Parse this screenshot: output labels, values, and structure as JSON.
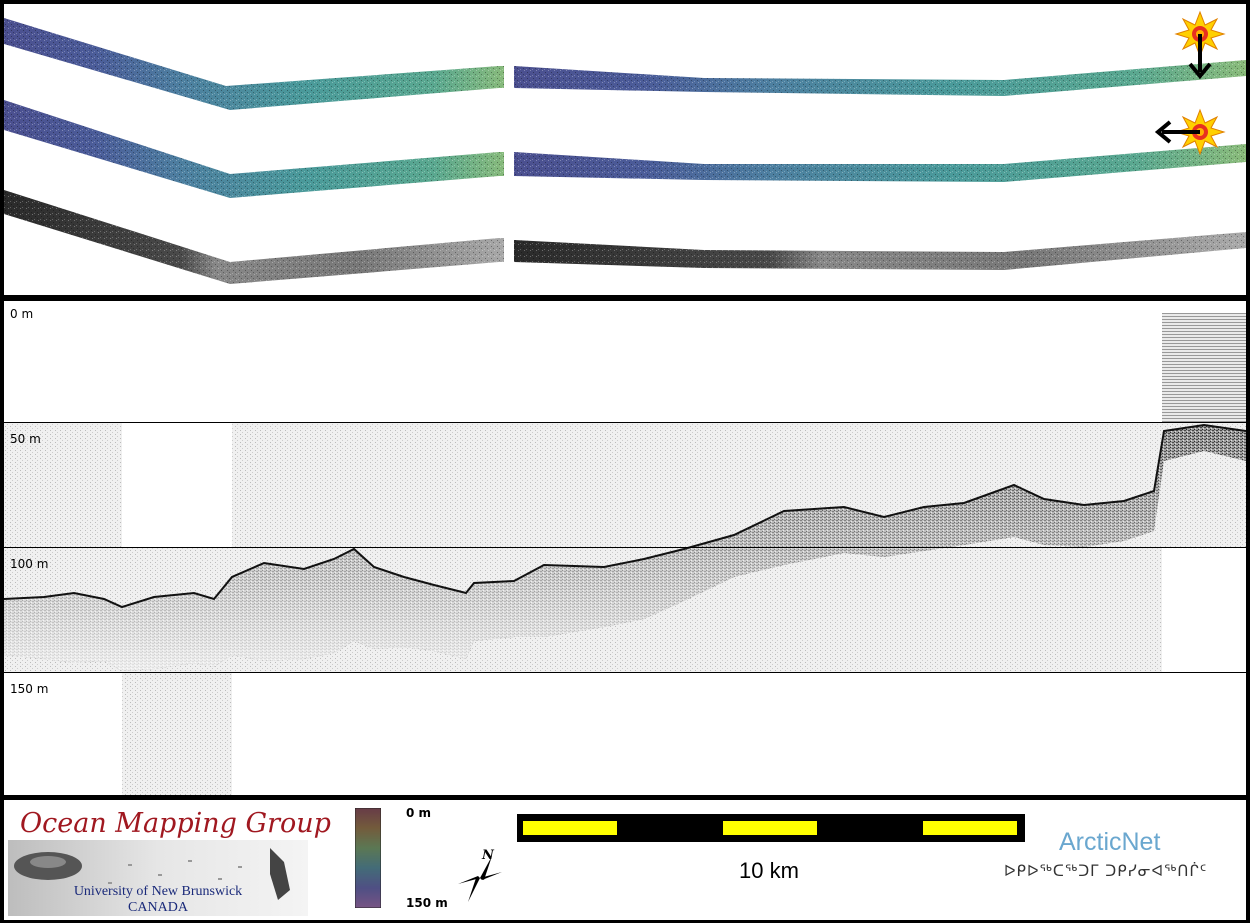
{
  "profile": {
    "depth_labels": [
      "0 m",
      "50 m",
      "100 m",
      "150 m"
    ]
  },
  "logo": {
    "title": "Ocean Mapping Group",
    "university": "University of New Brunswick",
    "country": "CANADA"
  },
  "colorbar": {
    "top_label": "0 m",
    "bottom_label": "150 m"
  },
  "compass": {
    "north_label": "N"
  },
  "scale_bar": {
    "label": "10 km"
  },
  "partner": {
    "name": "ArcticNet",
    "inuktitut": "ᐅᑭᐅᖅᑕᖅᑐᒥ ᑐᑭᓯᓂᐊᖅᑎᒌᑦ"
  },
  "colors": {
    "swath_start": "#4a5a9a",
    "swath_mid": "#4a8aa0",
    "swath_end": "#7ab88a",
    "sun": "#ffd000",
    "scale_yellow": "#ffff00"
  }
}
